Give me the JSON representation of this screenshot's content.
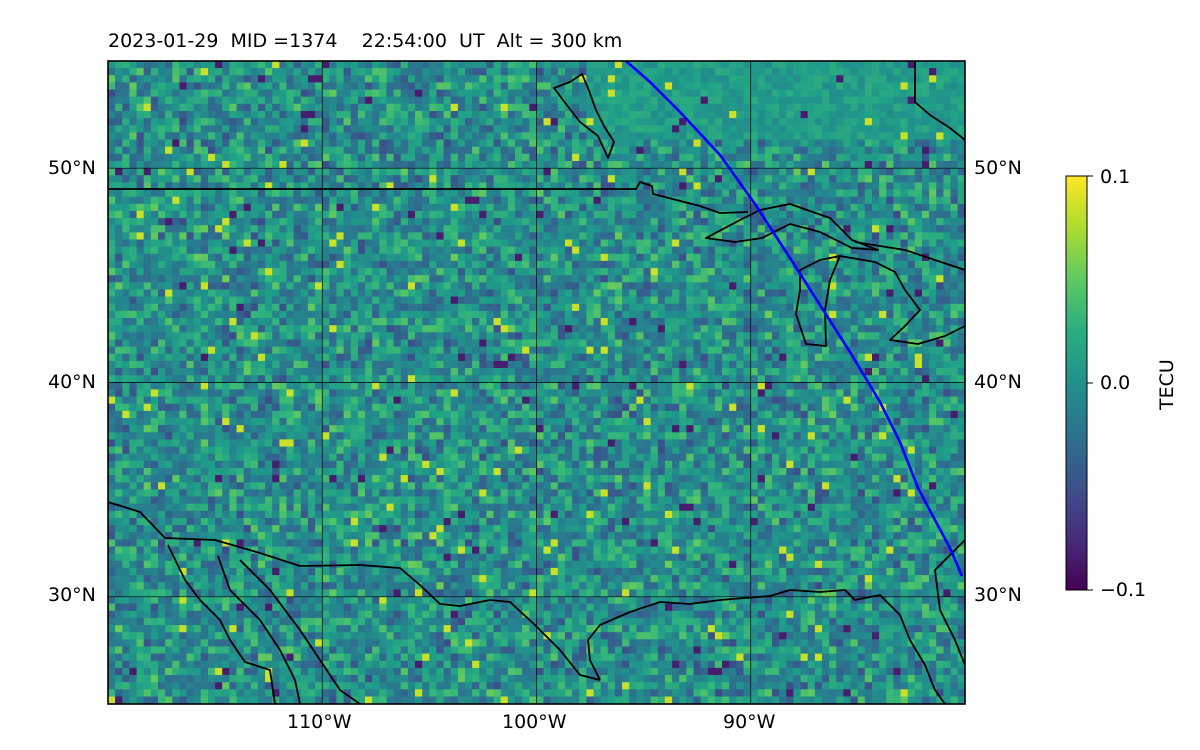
{
  "title": {
    "date": "2023-01-29",
    "mid": "MID =1374",
    "time": "22:54:00  UT",
    "alt": "Alt = 300 km"
  },
  "map": {
    "lon_range": [
      -120,
      -80
    ],
    "lat_range": [
      25,
      55
    ],
    "lat_ticks": [
      {
        "value": 30,
        "label": "30°N"
      },
      {
        "value": 40,
        "label": "40°N"
      },
      {
        "value": 50,
        "label": "50°N"
      }
    ],
    "lon_ticks": [
      {
        "value": -110,
        "label": "110°W"
      },
      {
        "value": -100,
        "label": "100°W"
      },
      {
        "value": -90,
        "label": "90°W"
      }
    ],
    "terminator_color": "#0000ff",
    "coastline_color": "#000000",
    "field": "detrended TEC perturbation (viridis colormap)"
  },
  "colorbar": {
    "label": "TECU",
    "min": -0.1,
    "max": 0.1,
    "ticks": [
      {
        "value": 0.1,
        "label": "0.1"
      },
      {
        "value": 0.0,
        "label": "0.0"
      },
      {
        "value": -0.1,
        "label": "−0.1"
      }
    ],
    "colormap": "viridis"
  }
}
